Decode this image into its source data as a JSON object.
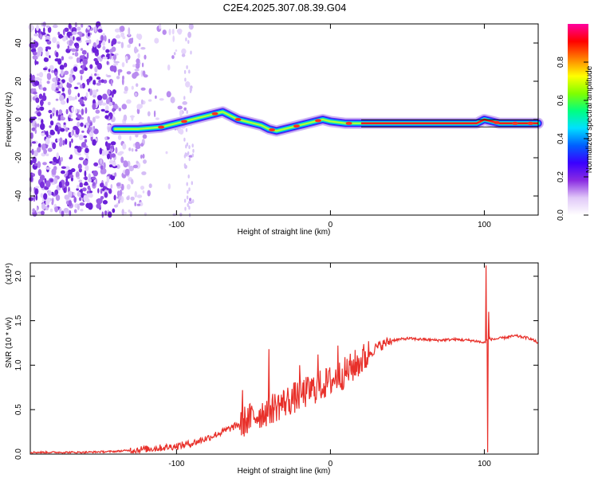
{
  "title": "C2E4.2025.307.08.39.G04",
  "chart_data": [
    {
      "type": "heatmap",
      "name": "spectrogram",
      "xlabel": "Height of straight line (km)",
      "ylabel": "Frequency (Hz)",
      "xlim": [
        -195,
        135
      ],
      "ylim": [
        -50,
        50
      ],
      "xticks": [
        -100,
        0,
        100
      ],
      "yticks": [
        -40,
        -20,
        0,
        20,
        40
      ],
      "xtick_labels": [
        "-100",
        "0",
        "100"
      ],
      "ytick_labels": [
        "-40",
        "-20",
        "0",
        "20",
        "40"
      ],
      "colorbar": {
        "label": "Normalized spectral amplitude",
        "range": [
          0,
          1
        ],
        "ticks": [
          0.0,
          0.2,
          0.4,
          0.6,
          0.8
        ],
        "tick_labels": [
          "0.0",
          "0.2",
          "0.4",
          "0.6",
          "0.8"
        ],
        "colors": [
          "#ffffff",
          "#e0c8f8",
          "#8a2be2",
          "#3a00ff",
          "#0060ff",
          "#00e0ff",
          "#00ff80",
          "#80ff00",
          "#ffff00",
          "#ff8000",
          "#ff0000",
          "#ff00a0"
        ]
      },
      "noise_region": [
        -195,
        -110
      ],
      "carrier_track": [
        [
          -140,
          -5
        ],
        [
          -125,
          -5
        ],
        [
          -110,
          -4
        ],
        [
          -100,
          -2
        ],
        [
          -90,
          0
        ],
        [
          -80,
          2
        ],
        [
          -70,
          4
        ],
        [
          -65,
          2
        ],
        [
          -60,
          0
        ],
        [
          -55,
          -1
        ],
        [
          -50,
          -2
        ],
        [
          -45,
          -3
        ],
        [
          -40,
          -5
        ],
        [
          -35,
          -6
        ],
        [
          -30,
          -5
        ],
        [
          -25,
          -4
        ],
        [
          -20,
          -3
        ],
        [
          -15,
          -2
        ],
        [
          -10,
          -1
        ],
        [
          -5,
          0
        ],
        [
          0,
          -1
        ],
        [
          10,
          -2
        ],
        [
          20,
          -2
        ],
        [
          40,
          -2
        ],
        [
          60,
          -2
        ],
        [
          80,
          -2
        ],
        [
          95,
          -2
        ],
        [
          100,
          0
        ],
        [
          105,
          -1
        ],
        [
          110,
          -2
        ],
        [
          135,
          -2
        ]
      ],
      "peak_spots": [
        -110,
        -95,
        -75,
        -60,
        -38,
        -22,
        -8,
        12,
        108,
        120,
        130
      ]
    },
    {
      "type": "line",
      "name": "snr",
      "xlabel": "Height of straight line (km)",
      "ylabel": "SNR (10 * v/v)",
      "y_multiplier": "(x10⁴)",
      "xlim": [
        -195,
        135
      ],
      "ylim": [
        0,
        2.15
      ],
      "xticks": [
        -100,
        0,
        100
      ],
      "yticks": [
        0.0,
        0.5,
        1.0,
        1.5,
        2.0
      ],
      "xtick_labels": [
        "-100",
        "0",
        "100"
      ],
      "ytick_labels": [
        "0.0",
        "0.5",
        "1.0",
        "1.5",
        "2.0"
      ],
      "color": "#e8302a",
      "series": [
        {
          "name": "SNR",
          "x": [
            -195,
            -180,
            -160,
            -140,
            -125,
            -110,
            -100,
            -90,
            -80,
            -70,
            -60,
            -50,
            -40,
            -30,
            -20,
            -10,
            0,
            10,
            20,
            30,
            40,
            50,
            60,
            70,
            80,
            90,
            95,
            100,
            103,
            105,
            110,
            120,
            130,
            135
          ],
          "y": [
            0.02,
            0.02,
            0.02,
            0.03,
            0.05,
            0.07,
            0.09,
            0.12,
            0.18,
            0.25,
            0.33,
            0.42,
            0.5,
            0.58,
            0.66,
            0.74,
            0.82,
            0.92,
            1.05,
            1.2,
            1.28,
            1.3,
            1.29,
            1.28,
            1.29,
            1.28,
            1.27,
            1.25,
            1.3,
            1.29,
            1.3,
            1.33,
            1.3,
            1.25
          ]
        }
      ],
      "spikes": [
        [
          -57,
          0.72
        ],
        [
          -40,
          1.18
        ],
        [
          -20,
          1.0
        ],
        [
          -8,
          1.12
        ],
        [
          5,
          1.22
        ],
        [
          101,
          2.12
        ],
        [
          102,
          0.02
        ],
        [
          103,
          1.6
        ]
      ]
    }
  ]
}
